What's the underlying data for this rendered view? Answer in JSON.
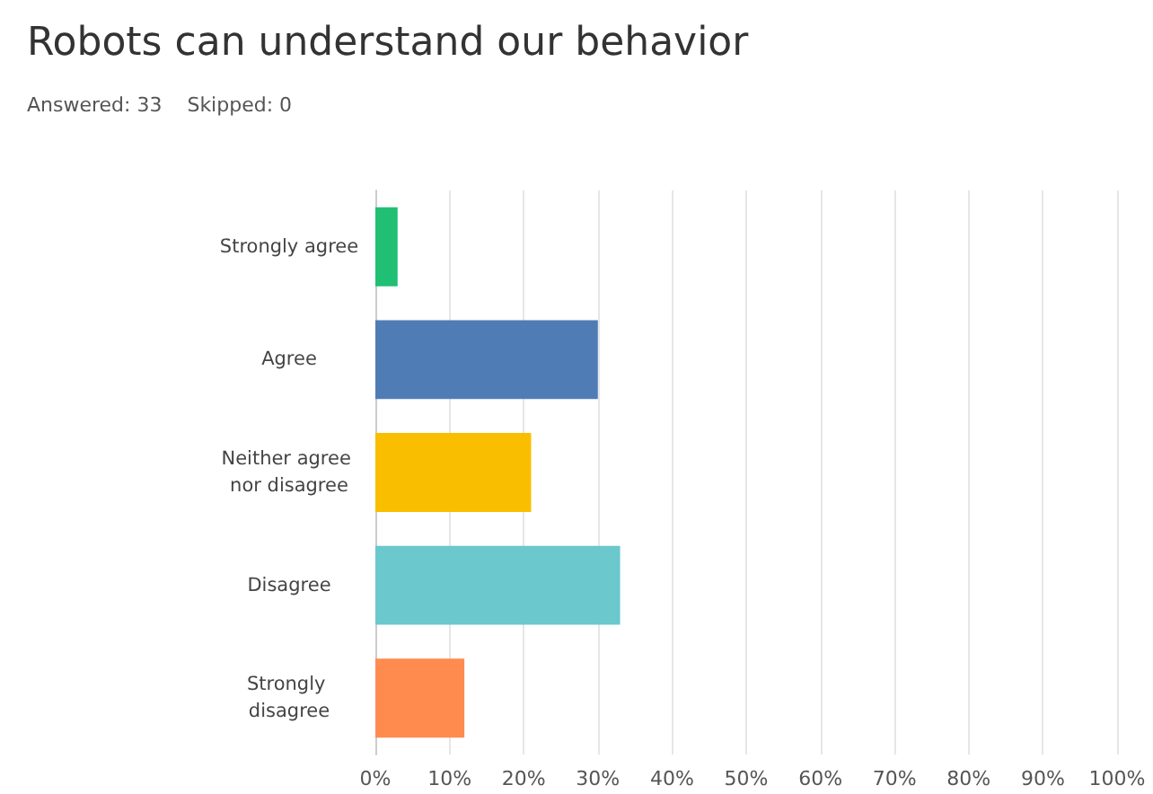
{
  "chart_data": {
    "type": "bar",
    "orientation": "horizontal",
    "title": "Robots can understand our behavior",
    "subtitle": "Answered: 33    Skipped: 0",
    "categories": [
      "Strongly agree",
      "Agree",
      "Neither agree nor disagree",
      "Disagree",
      "Strongly disagree"
    ],
    "values": [
      3,
      30,
      21,
      33,
      12
    ],
    "colors": [
      "#21bf73",
      "#507cb6",
      "#f9be00",
      "#6bc8cd",
      "#ff8b4f"
    ],
    "xlim": [
      0,
      100
    ],
    "xticks": [
      {
        "value": 0,
        "label": "0%"
      },
      {
        "value": 10,
        "label": "10%"
      },
      {
        "value": 20,
        "label": "20%"
      },
      {
        "value": 30,
        "label": "30%"
      },
      {
        "value": 40,
        "label": "40%"
      },
      {
        "value": 50,
        "label": "50%"
      },
      {
        "value": 60,
        "label": "60%"
      },
      {
        "value": 70,
        "label": "70%"
      },
      {
        "value": 80,
        "label": "80%"
      },
      {
        "value": 90,
        "label": "90%"
      },
      {
        "value": 100,
        "label": "100%"
      }
    ],
    "grid": "x"
  }
}
